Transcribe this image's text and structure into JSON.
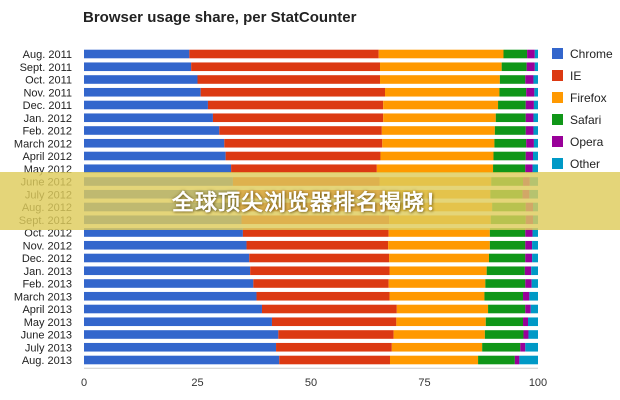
{
  "chart_data": {
    "type": "bar",
    "orientation": "horizontal",
    "stacked": true,
    "title": "Browser usage share, per StatCounter",
    "xlim": [
      0,
      100
    ],
    "xticks": [
      0,
      25,
      50,
      75,
      100
    ],
    "grid": false,
    "legend_position": "right",
    "categories": [
      "Aug. 2011",
      "Sept. 2011",
      "Oct. 2011",
      "Nov. 2011",
      "Dec. 2011",
      "Jan. 2012",
      "Feb. 2012",
      "March 2012",
      "April 2012",
      "May 2012",
      "June 2012",
      "July 2012",
      "Aug. 2012",
      "Sept. 2012",
      "Oct. 2012",
      "Nov. 2012",
      "Dec. 2012",
      "Jan. 2013",
      "Feb. 2013",
      "March 2013",
      "April 2013",
      "May 2013",
      "June 2013",
      "July 2013",
      "Aug. 2013"
    ],
    "series": [
      {
        "name": "Chrome",
        "color": "#3366cc",
        "values": [
          23.2,
          23.6,
          25.0,
          25.7,
          27.3,
          28.4,
          29.8,
          30.9,
          31.2,
          32.4,
          32.8,
          33.8,
          34.2,
          34.7,
          35.0,
          35.8,
          36.4,
          36.6,
          37.3,
          38.0,
          39.2,
          41.4,
          42.8,
          42.3,
          43.0
        ]
      },
      {
        "name": "IE",
        "color": "#dc3912",
        "values": [
          41.7,
          41.6,
          40.2,
          40.6,
          38.6,
          37.5,
          35.8,
          34.8,
          34.1,
          32.1,
          32.3,
          32.0,
          32.9,
          32.5,
          32.1,
          31.2,
          30.8,
          30.7,
          29.8,
          29.3,
          29.7,
          27.4,
          25.4,
          25.5,
          24.4
        ]
      },
      {
        "name": "Firefox",
        "color": "#ff9900",
        "values": [
          27.5,
          26.8,
          26.4,
          25.2,
          25.3,
          24.8,
          24.9,
          24.7,
          24.9,
          25.6,
          24.6,
          23.7,
          22.8,
          22.4,
          22.3,
          22.4,
          22.0,
          21.4,
          21.3,
          20.9,
          20.1,
          19.7,
          20.1,
          19.9,
          19.4
        ]
      },
      {
        "name": "Safari",
        "color": "#109618",
        "values": [
          5.2,
          5.5,
          5.6,
          5.9,
          6.1,
          6.6,
          6.8,
          7.0,
          7.1,
          7.1,
          7.0,
          7.1,
          7.4,
          7.7,
          7.8,
          7.8,
          8.0,
          8.4,
          8.8,
          8.5,
          8.2,
          8.2,
          8.5,
          8.4,
          8.1
        ]
      },
      {
        "name": "Opera",
        "color": "#990099",
        "values": [
          1.7,
          1.8,
          1.8,
          1.8,
          1.8,
          1.7,
          1.7,
          1.7,
          1.6,
          1.6,
          1.5,
          1.5,
          1.6,
          1.6,
          1.6,
          1.5,
          1.5,
          1.4,
          1.4,
          1.4,
          1.2,
          1.1,
          1.1,
          1.1,
          1.0
        ]
      },
      {
        "name": "Other",
        "color": "#0099c6",
        "values": [
          0.7,
          0.7,
          1.0,
          0.8,
          0.9,
          1.0,
          1.0,
          0.9,
          1.1,
          1.2,
          1.8,
          1.9,
          1.1,
          1.1,
          1.2,
          1.3,
          1.3,
          1.5,
          1.4,
          1.9,
          1.6,
          2.2,
          2.1,
          2.8,
          4.1
        ]
      }
    ]
  },
  "banner": {
    "text": "全球顶尖浏览器排名揭晓！"
  }
}
